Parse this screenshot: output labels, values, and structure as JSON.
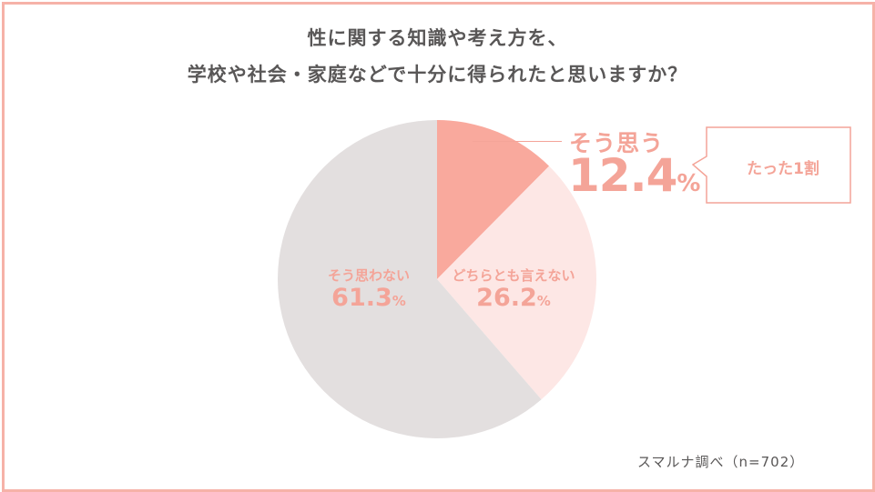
{
  "chart_data": {
    "type": "pie",
    "title": "性に関する知識や考え方を、",
    "subtitle": "学校や社会・家庭などで十分に得られたと思いますか？",
    "slices": [
      {
        "label": "そう思う",
        "value": 12.4,
        "display": "12.4",
        "color": "#f9a99d"
      },
      {
        "label": "どちらとも言えない",
        "value": 26.2,
        "display": "26.2",
        "color": "#fde7e5"
      },
      {
        "label": "そう思わない",
        "value": 61.3,
        "display": "61.3",
        "color": "#e3dfdf"
      }
    ],
    "unit": "%",
    "annotation": "たった1割",
    "source": "スマルナ調べ（n=702）"
  },
  "colors": {
    "frame": "#f6b2a8",
    "accent": "#f4a498",
    "text": "#595757"
  }
}
